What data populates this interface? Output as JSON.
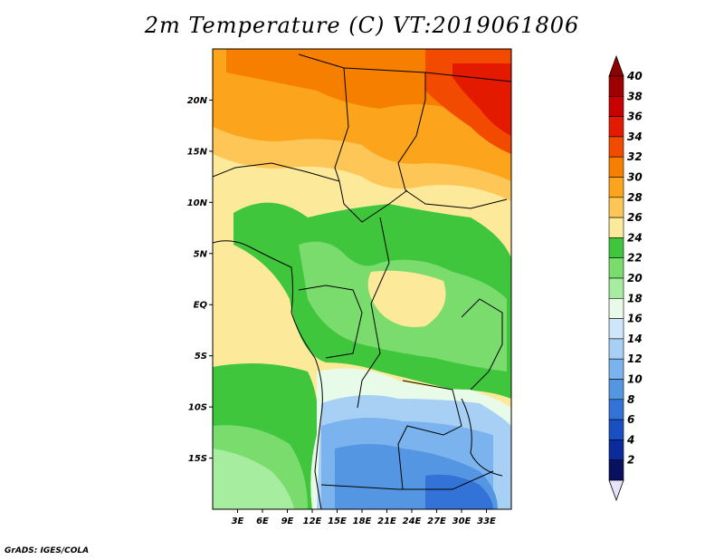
{
  "title": "2m Temperature (C) VT:2019061806",
  "credit": "GrADS: IGES/COLA",
  "map": {
    "lon_range": [
      0,
      36
    ],
    "lat_range": [
      -20,
      25
    ],
    "lat_ticks": [
      {
        "value": 20,
        "label": "20N"
      },
      {
        "value": 15,
        "label": "15N"
      },
      {
        "value": 10,
        "label": "10N"
      },
      {
        "value": 5,
        "label": "5N"
      },
      {
        "value": 0,
        "label": "EQ"
      },
      {
        "value": -5,
        "label": "5S"
      },
      {
        "value": -10,
        "label": "10S"
      },
      {
        "value": -15,
        "label": "15S"
      }
    ],
    "lon_ticks": [
      {
        "value": 3,
        "label": "3E"
      },
      {
        "value": 6,
        "label": "6E"
      },
      {
        "value": 9,
        "label": "9E"
      },
      {
        "value": 12,
        "label": "12E"
      },
      {
        "value": 15,
        "label": "15E"
      },
      {
        "value": 18,
        "label": "18E"
      },
      {
        "value": 21,
        "label": "21E"
      },
      {
        "value": 24,
        "label": "24E"
      },
      {
        "value": 27,
        "label": "27E"
      },
      {
        "value": 30,
        "label": "30E"
      },
      {
        "value": 33,
        "label": "33E"
      }
    ]
  },
  "colorbar": {
    "labels": [
      "40",
      "38",
      "36",
      "34",
      "32",
      "30",
      "28",
      "26",
      "24",
      "22",
      "20",
      "18",
      "16",
      "14",
      "12",
      "10",
      "8",
      "6",
      "4",
      "2"
    ],
    "colors": [
      "#9e0000",
      "#c80000",
      "#e31a00",
      "#f24b00",
      "#f77f00",
      "#fca51c",
      "#fdc657",
      "#fde99a",
      "#3fc63d",
      "#7bdc6e",
      "#a6eda0",
      "#e8fbe8",
      "#cfe6fa",
      "#a8d0f5",
      "#7ab3ee",
      "#5596e3",
      "#3373d8",
      "#1a4fc4",
      "#0a2b9c",
      "#0a1060"
    ],
    "top_arrow_color": "#8c0000",
    "bottom_arrow_color": "#e6e2f8"
  }
}
